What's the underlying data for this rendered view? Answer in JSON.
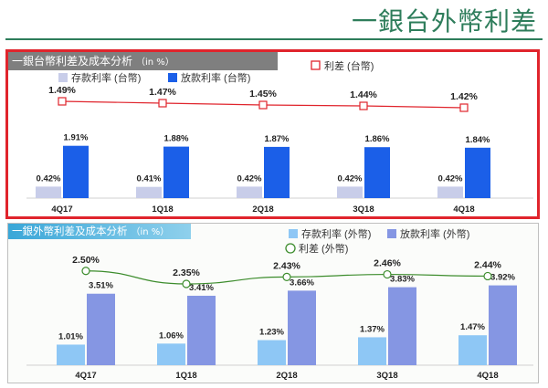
{
  "page": {
    "title": "一銀台外幣利差"
  },
  "colors": {
    "title": "#2e7d5b",
    "highlight_border": "#e0242c",
    "twd_deposit": "#c8cde9",
    "twd_loan": "#1b5fe8",
    "twd_spread": "#e0242c",
    "fx_deposit": "#8ec7f5",
    "fx_loan": "#8596e3",
    "fx_spread": "#3c8c2c"
  },
  "chart_data": [
    {
      "type": "bar",
      "title": "一銀台幣利差及成本分析",
      "unit": "（in %）",
      "categories": [
        "4Q17",
        "1Q18",
        "2Q18",
        "3Q18",
        "4Q18"
      ],
      "series": [
        {
          "name": "存款利率 (台幣)",
          "kind": "bar",
          "values": [
            0.42,
            0.41,
            0.42,
            0.42,
            0.42
          ],
          "labels": [
            "0.42%",
            "0.41%",
            "0.42%",
            "0.42%",
            "0.42%"
          ]
        },
        {
          "name": "放款利率 (台幣)",
          "kind": "bar",
          "values": [
            1.91,
            1.88,
            1.87,
            1.86,
            1.84
          ],
          "labels": [
            "1.91%",
            "1.88%",
            "1.87%",
            "1.86%",
            "1.84%"
          ]
        },
        {
          "name": "利差 (台幣)",
          "kind": "line",
          "values": [
            1.49,
            1.47,
            1.45,
            1.44,
            1.42
          ],
          "labels": [
            "1.49%",
            "1.47%",
            "1.45%",
            "1.44%",
            "1.42%"
          ]
        }
      ],
      "legend": "top"
    },
    {
      "type": "bar",
      "title": "一銀外幣利差及成本分析",
      "unit": "（in %）",
      "categories": [
        "4Q17",
        "1Q18",
        "2Q18",
        "3Q18",
        "4Q18"
      ],
      "series": [
        {
          "name": "存款利率 (外幣)",
          "kind": "bar",
          "values": [
            1.01,
            1.06,
            1.23,
            1.37,
            1.47
          ],
          "labels": [
            "1.01%",
            "1.06%",
            "1.23%",
            "1.37%",
            "1.47%"
          ]
        },
        {
          "name": "放款利率 (外幣)",
          "kind": "bar",
          "values": [
            3.51,
            3.41,
            3.66,
            3.83,
            3.92
          ],
          "labels": [
            "3.51%",
            "3.41%",
            "3.66%",
            "3.83%",
            "3.92%"
          ]
        },
        {
          "name": "利差 (外幣)",
          "kind": "line",
          "values": [
            2.5,
            2.35,
            2.43,
            2.46,
            2.44
          ],
          "labels": [
            "2.50%",
            "2.35%",
            "2.43%",
            "2.46%",
            "2.44%"
          ]
        }
      ],
      "legend": "top"
    }
  ]
}
